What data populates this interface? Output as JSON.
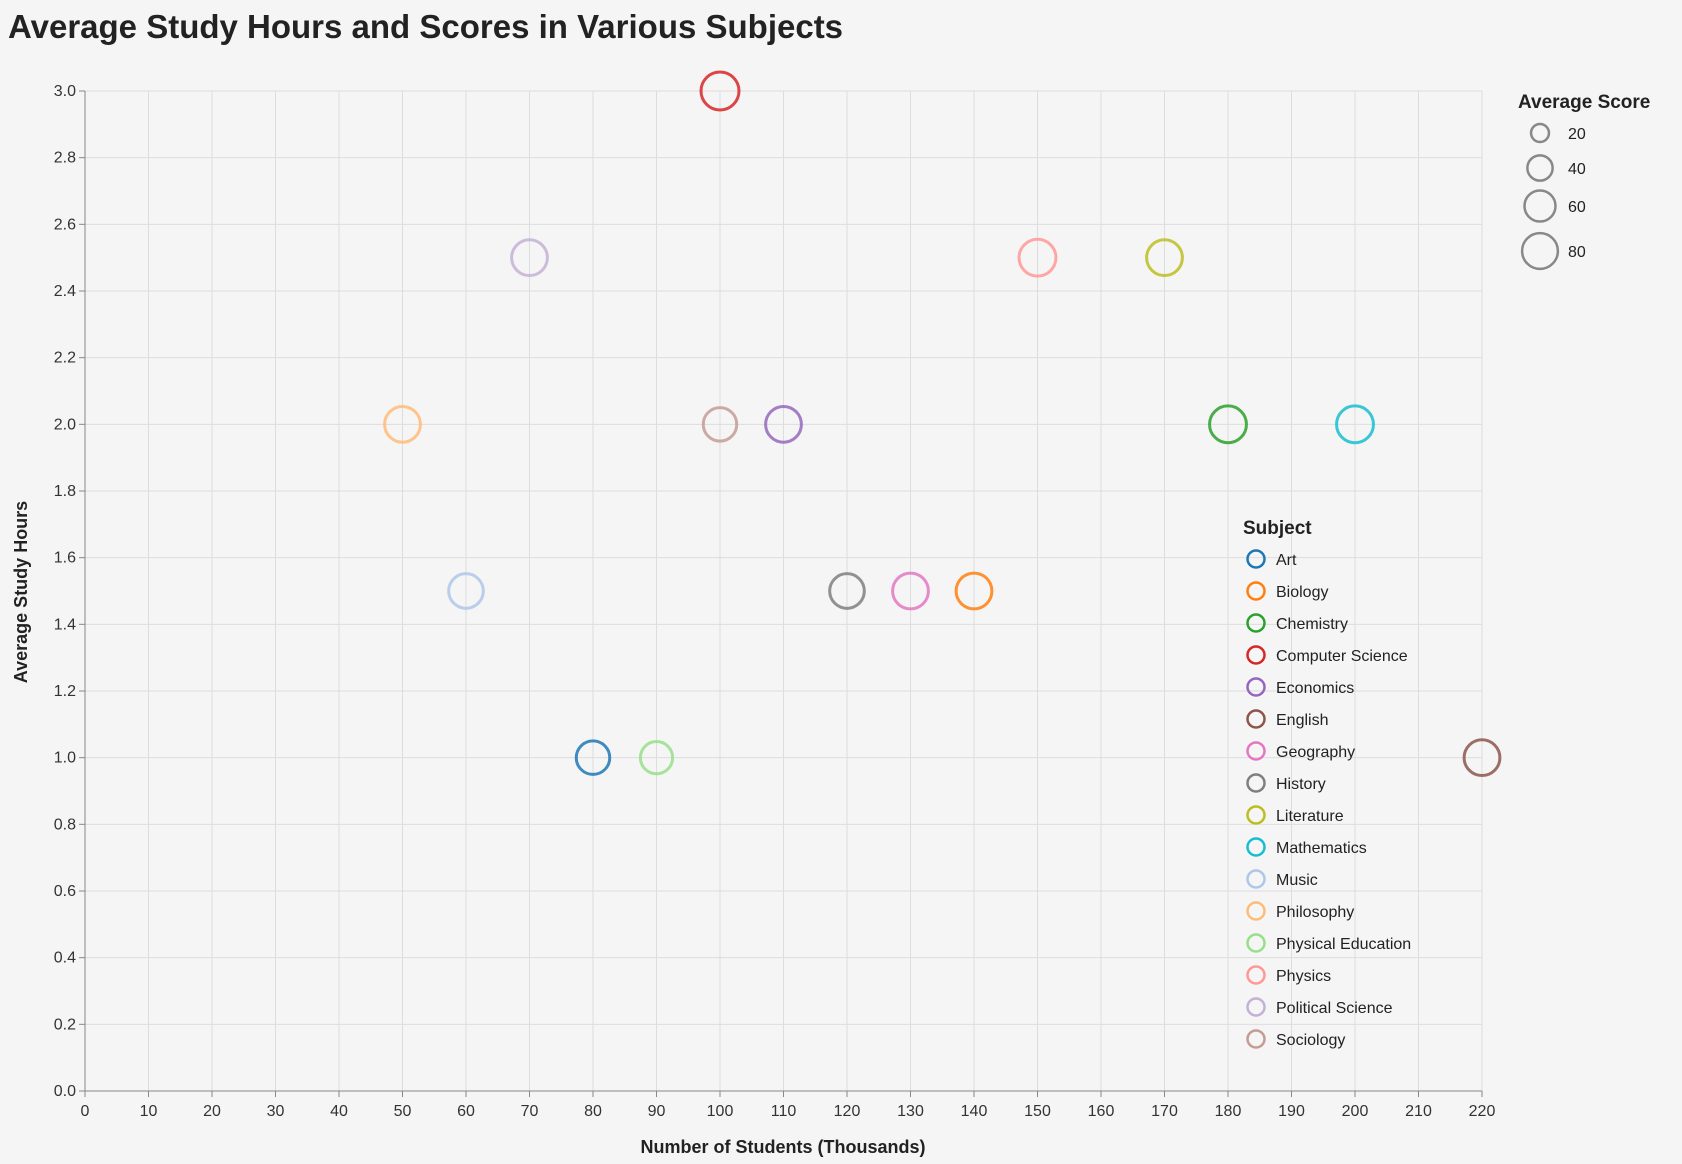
{
  "chart_data": {
    "type": "scatter",
    "title": "Average Study Hours and Scores in Various Subjects",
    "xlabel": "Number of Students (Thousands)",
    "ylabel": "Average Study Hours",
    "xlim": [
      0,
      220
    ],
    "ylim": [
      0,
      3.0
    ],
    "x_ticks": [
      "0",
      "10",
      "20",
      "30",
      "40",
      "50",
      "60",
      "70",
      "80",
      "90",
      "100",
      "110",
      "120",
      "130",
      "140",
      "150",
      "160",
      "170",
      "180",
      "190",
      "200",
      "210",
      "220"
    ],
    "y_ticks": [
      "0.0",
      "0.2",
      "0.4",
      "0.6",
      "0.8",
      "1.0",
      "1.2",
      "1.4",
      "1.6",
      "1.8",
      "2.0",
      "2.2",
      "2.4",
      "2.6",
      "2.8",
      "3.0"
    ],
    "grid": true,
    "size_legend": {
      "title": "Average Score",
      "values": [
        20,
        40,
        60,
        80
      ],
      "labels": [
        "20",
        "40",
        "60",
        "80"
      ]
    },
    "color_legend": {
      "title": "Subject",
      "placement": "right"
    },
    "points": [
      {
        "subject": "Art",
        "x": 80,
        "y": 1.0,
        "score": 70,
        "color": "#1f77b4"
      },
      {
        "subject": "Biology",
        "x": 140,
        "y": 1.5,
        "score": 80,
        "color": "#ff7f0e"
      },
      {
        "subject": "Chemistry",
        "x": 180,
        "y": 2.0,
        "score": 85,
        "color": "#2ca02c"
      },
      {
        "subject": "Computer Science",
        "x": 100,
        "y": 3.0,
        "score": 90,
        "color": "#d62728"
      },
      {
        "subject": "Economics",
        "x": 110,
        "y": 2.0,
        "score": 80,
        "color": "#9467bd"
      },
      {
        "subject": "English",
        "x": 220,
        "y": 1.0,
        "score": 80,
        "color": "#8c564b"
      },
      {
        "subject": "Geography",
        "x": 130,
        "y": 1.5,
        "score": 80,
        "color": "#e377c2"
      },
      {
        "subject": "History",
        "x": 120,
        "y": 1.5,
        "score": 75,
        "color": "#7f7f7f"
      },
      {
        "subject": "Literature",
        "x": 170,
        "y": 2.5,
        "score": 80,
        "color": "#bcbd22"
      },
      {
        "subject": "Mathematics",
        "x": 200,
        "y": 2.0,
        "score": 85,
        "color": "#17becf"
      },
      {
        "subject": "Music",
        "x": 60,
        "y": 1.5,
        "score": 75,
        "color": "#aec7e8"
      },
      {
        "subject": "Philosophy",
        "x": 50,
        "y": 2.0,
        "score": 80,
        "color": "#ffbb78"
      },
      {
        "subject": "Physical Education",
        "x": 90,
        "y": 1.0,
        "score": 65,
        "color": "#98df8a"
      },
      {
        "subject": "Physics",
        "x": 150,
        "y": 2.5,
        "score": 85,
        "color": "#ff9896"
      },
      {
        "subject": "Political Science",
        "x": 70,
        "y": 2.5,
        "score": 80,
        "color": "#c5b0d5"
      },
      {
        "subject": "Sociology",
        "x": 100,
        "y": 2.0,
        "score": 70,
        "color": "#c49c94"
      }
    ]
  }
}
